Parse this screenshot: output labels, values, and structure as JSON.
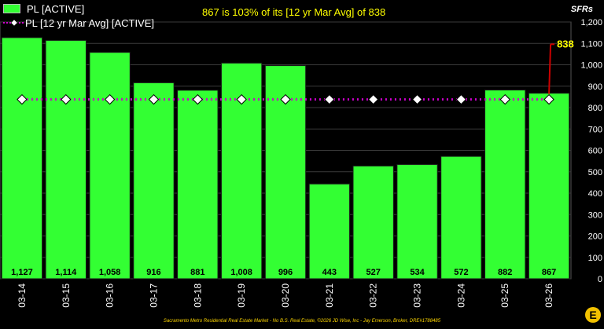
{
  "chart_data": {
    "type": "bar",
    "title": "867 is 103% of its [12 yr Mar Avg] of 838",
    "units_label": "SFRs",
    "categories": [
      "03-14",
      "03-15",
      "03-16",
      "03-17",
      "03-18",
      "03-19",
      "03-20",
      "03-21",
      "03-22",
      "03-23",
      "03-24",
      "03-25",
      "03-26"
    ],
    "series": [
      {
        "name": "PL [ACTIVE]",
        "type": "bar",
        "color": "#33ff33",
        "values": [
          1127,
          1114,
          1058,
          916,
          881,
          1008,
          996,
          443,
          527,
          534,
          572,
          882,
          867
        ],
        "data_labels": [
          "1,127",
          "1,114",
          "1,058",
          "916",
          "881",
          "1,008",
          "996",
          "443",
          "527",
          "534",
          "572",
          "882",
          "867"
        ]
      },
      {
        "name": "PL [12 yr Mar Avg] [ACTIVE]",
        "type": "line",
        "color": "#cc00cc",
        "marker": "diamond",
        "values": [
          838,
          838,
          838,
          838,
          838,
          838,
          838,
          838,
          838,
          838,
          838,
          838,
          838
        ]
      }
    ],
    "annotation": {
      "text": "838",
      "category": "03-26",
      "value": 838,
      "color": "#ffff00",
      "arrow_color": "#cc0000"
    },
    "ylim": [
      0,
      1200
    ],
    "yticks": [
      "0",
      "100",
      "200",
      "300",
      "400",
      "500",
      "600",
      "700",
      "800",
      "900",
      "1,000",
      "1,100",
      "1,200"
    ],
    "y_axis_side": "right",
    "grid": true,
    "legend_position": "top-left",
    "footer": "Sacramento Metro Residential Real Estate Market - No B.S. Real Estate, ©2026 JD Wise, Inc - Jay Emerson, Broker, DRE#1788485",
    "logo_text": "E"
  }
}
